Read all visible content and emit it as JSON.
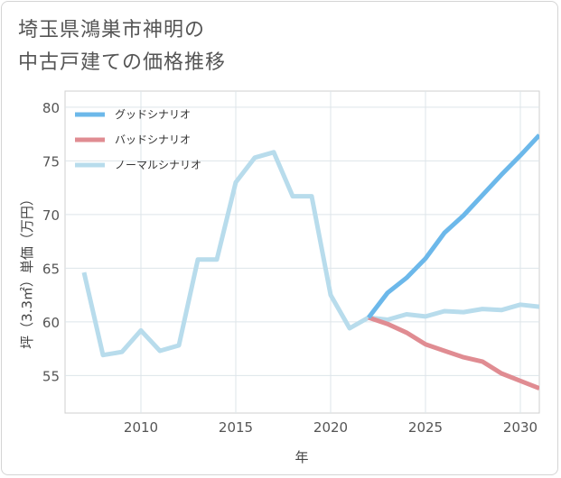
{
  "title_lines": [
    "埼玉県鴻巣市神明の",
    "中古戸建ての価格推移"
  ],
  "chart_data": {
    "type": "line",
    "title": "埼玉県鴻巣市神明の中古戸建ての価格推移",
    "xlabel": "年",
    "ylabel": "坪（3.3㎡）単価（万円）",
    "xlim": [
      2006,
      2031
    ],
    "ylim": [
      51.5,
      81.5
    ],
    "xticks": [
      2010,
      2015,
      2020,
      2025,
      2030
    ],
    "yticks": [
      55,
      60,
      65,
      70,
      75,
      80
    ],
    "grid": true,
    "legend_position": "top-left",
    "series": [
      {
        "name": "グッドシナリオ",
        "color": "#6cb8ea",
        "x": [
          2022,
          2023,
          2024,
          2025,
          2026,
          2027,
          2028,
          2029,
          2030,
          2031
        ],
        "y": [
          60.4,
          62.7,
          64.1,
          65.9,
          68.3,
          69.9,
          71.8,
          73.7,
          75.5,
          77.4
        ]
      },
      {
        "name": "バッドシナリオ",
        "color": "#e08c92",
        "x": [
          2022,
          2023,
          2024,
          2025,
          2026,
          2027,
          2028,
          2029,
          2030,
          2031
        ],
        "y": [
          60.4,
          59.8,
          59.0,
          57.9,
          57.3,
          56.7,
          56.3,
          55.2,
          54.5,
          53.8
        ]
      },
      {
        "name": "ノーマルシナリオ",
        "color": "#b8dcec",
        "x": [
          2007,
          2008,
          2009,
          2010,
          2011,
          2012,
          2013,
          2014,
          2015,
          2016,
          2017,
          2018,
          2019,
          2020,
          2021,
          2022,
          2023,
          2024,
          2025,
          2026,
          2027,
          2028,
          2029,
          2030,
          2031
        ],
        "y": [
          64.6,
          56.9,
          57.2,
          59.2,
          57.3,
          57.8,
          65.8,
          65.8,
          73.0,
          75.3,
          75.8,
          71.7,
          71.7,
          62.5,
          59.4,
          60.4,
          60.2,
          60.7,
          60.5,
          61.0,
          60.9,
          61.2,
          61.1,
          61.6,
          61.4
        ]
      }
    ]
  }
}
